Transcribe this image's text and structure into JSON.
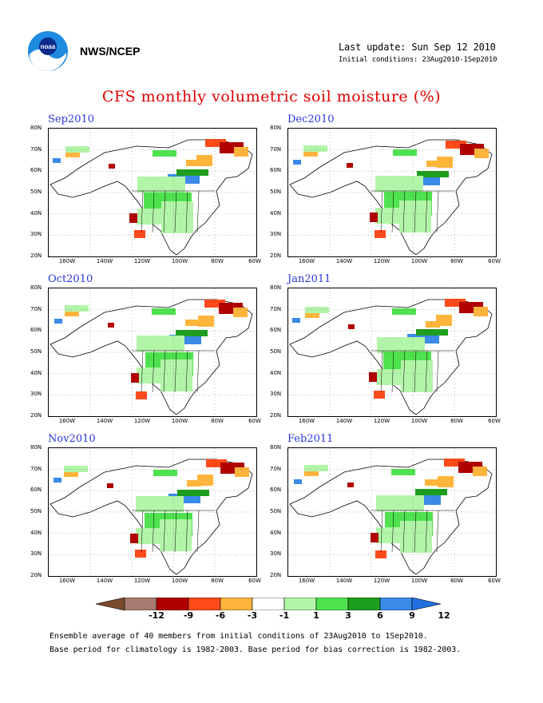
{
  "header": {
    "org": "NWS/NCEP",
    "last_update": "Last update: Sun Sep 12 2010",
    "initial_conditions": "Initial conditions: 23Aug2010-1Sep2010"
  },
  "title": "CFS monthly volumetric soil moisture (%)",
  "panels": [
    {
      "label": "Sep2010"
    },
    {
      "label": "Dec2010"
    },
    {
      "label": "Oct2010"
    },
    {
      "label": "Jan2011"
    },
    {
      "label": "Nov2010"
    },
    {
      "label": "Feb2011"
    }
  ],
  "axes": {
    "lat_labels": [
      "80N",
      "70N",
      "60N",
      "50N",
      "40N",
      "30N",
      "20N"
    ],
    "lon_labels": [
      "160W",
      "140W",
      "120W",
      "100W",
      "80W",
      "60W"
    ]
  },
  "colorbar": {
    "ticks": [
      "-12",
      "-9",
      "-6",
      "-3",
      "-1",
      "1",
      "3",
      "6",
      "9",
      "12"
    ],
    "colors": [
      "#7b4a2e",
      "#a67a6e",
      "#b00000",
      "#ff4a1a",
      "#ffb43c",
      "#ffffff",
      "#b2f5a8",
      "#4fe24f",
      "#1e9e1e",
      "#3a8ae8",
      "#2070e0"
    ]
  },
  "footnote": {
    "line1": "Ensemble average of 40 members from initial conditions of 23Aug2010 to 1Sep2010.",
    "line2": "Base period for climatology is 1982-2003. Base period for bias correction is 1982-2003."
  }
}
